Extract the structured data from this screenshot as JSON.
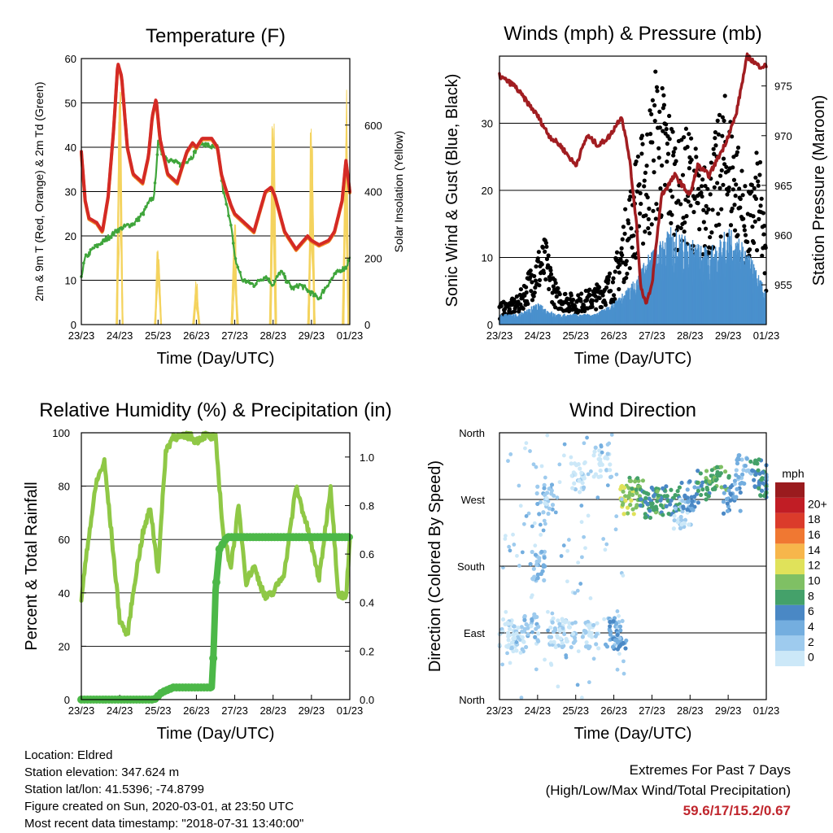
{
  "x_ticks": [
    "23/23",
    "24/23",
    "25/23",
    "26/23",
    "27/23",
    "28/23",
    "29/23",
    "01/23"
  ],
  "panels": {
    "temperature": {
      "title": "Temperature (F)",
      "xlabel": "Time (Day/UTC)",
      "ylabel_left": "2m & 9m T (Red, Orange) & 2m Td (Green)",
      "ylabel_right": "Solar Insolation (Yellow)",
      "yticks_left": [
        "0",
        "10",
        "20",
        "30",
        "40",
        "50",
        "60"
      ],
      "yticks_right": [
        "0",
        "200",
        "400",
        "600"
      ]
    },
    "winds": {
      "title": "Winds (mph) & Pressure (mb)",
      "xlabel": "Time (Day/UTC)",
      "ylabel_left": "Sonic Wind & Gust (Blue, Black)",
      "ylabel_right": "Station Pressure (Maroon)",
      "yticks_left": [
        "0",
        "10",
        "20",
        "30"
      ],
      "yticks_right": [
        "955",
        "960",
        "965",
        "970",
        "975"
      ]
    },
    "humidity": {
      "title": "Relative Humidity (%) & Precipitation (in)",
      "xlabel": "Time (Day/UTC)",
      "ylabel_left": "Percent & Total Rainfall",
      "yticks_left": [
        "0",
        "20",
        "40",
        "60",
        "80",
        "100"
      ],
      "yticks_right": [
        "0.0",
        "0.2",
        "0.4",
        "0.6",
        "0.8",
        "1.0"
      ]
    },
    "direction": {
      "title": "Wind Direction",
      "xlabel": "Time (Day/UTC)",
      "ylabel_left": "Direction (Colored By Speed)",
      "yticks_left": [
        "North",
        "East",
        "South",
        "West",
        "North"
      ],
      "legend_title": "mph",
      "legend_labels": [
        "0",
        "2",
        "4",
        "6",
        "8",
        "10",
        "12",
        "14",
        "16",
        "18",
        "20+"
      ],
      "legend_colors": [
        "#cce8f8",
        "#9ecbee",
        "#74aedf",
        "#4a88c5",
        "#44a16a",
        "#7fc064",
        "#e0e25a",
        "#f7b64b",
        "#f07832",
        "#db3b2b",
        "#c11d25",
        "#9a1b1e"
      ]
    }
  },
  "info": {
    "location": "Location: Eldred",
    "elevation": "Station elevation: 347.624 m",
    "latlon": "Station lat/lon: 41.5396; -74.8799",
    "created": "Figure created on Sun, 2020-03-01, at 23:50 UTC",
    "recent": "Most recent data timestamp: \"2018-07-31 13:40:00\""
  },
  "extremes": {
    "title": "Extremes For Past 7 Days",
    "subtitle": "(High/Low/Max Wind/Total Precipitation)",
    "values": "59.6/17/15.2/0.67"
  },
  "chart_data": [
    {
      "type": "line",
      "title": "Temperature (F)",
      "x_unit": "days since 23/23",
      "xlim": [
        0,
        7
      ],
      "ylim": [
        0,
        60
      ],
      "y2lim": [
        0,
        800
      ],
      "series": [
        {
          "name": "2m & 9m T (Red, Orange)",
          "color": "#d42a25",
          "x": [
            0,
            0.1,
            0.2,
            0.4,
            0.55,
            0.7,
            0.85,
            0.95,
            1.05,
            1.2,
            1.35,
            1.6,
            1.75,
            1.85,
            1.95,
            2.05,
            2.25,
            2.5,
            2.75,
            2.9,
            3.0,
            3.15,
            3.4,
            3.55,
            3.65,
            3.75,
            3.9,
            4.0,
            4.25,
            4.5,
            4.8,
            4.95,
            5.05,
            5.3,
            5.6,
            5.9,
            6.0,
            6.2,
            6.45,
            6.6,
            6.8,
            6.9,
            7.0
          ],
          "y": [
            39,
            28,
            24,
            23,
            21,
            29,
            45,
            59,
            56,
            40,
            34,
            32,
            38,
            47,
            51,
            42,
            34,
            32,
            39,
            41,
            40,
            42,
            42,
            40,
            34,
            31,
            27,
            25,
            23,
            21,
            30,
            31,
            29,
            21,
            17,
            20,
            19,
            18,
            19,
            21,
            28,
            37,
            30
          ]
        },
        {
          "name": "2m Td (Green)",
          "color": "#3fa53b",
          "x": [
            0,
            0.1,
            0.3,
            0.6,
            0.9,
            1.1,
            1.4,
            1.6,
            1.8,
            1.9,
            2.0,
            2.1,
            2.3,
            2.6,
            2.9,
            3.1,
            3.4,
            3.55,
            3.7,
            3.9,
            4.0,
            4.2,
            4.5,
            4.8,
            5.0,
            5.2,
            5.5,
            5.7,
            6.0,
            6.2,
            6.5,
            6.7,
            6.9,
            7.0
          ],
          "y": [
            11,
            15,
            17,
            19,
            21,
            22,
            23,
            25,
            28,
            29,
            41,
            39,
            37,
            36,
            38,
            41,
            40,
            40,
            30,
            23,
            15,
            10,
            9,
            11,
            9,
            12,
            8,
            9,
            7,
            6,
            10,
            12,
            13,
            15
          ]
        },
        {
          "name": "Solar Insolation (Yellow)",
          "axis": "right",
          "color": "#f4d35e",
          "x": [
            0.9,
            1.0,
            1.1,
            1.9,
            2.0,
            2.1,
            2.9,
            3.0,
            3.1,
            3.9,
            4.0,
            4.1,
            4.9,
            5.0,
            5.1,
            5.9,
            6.0,
            6.1,
            6.8,
            6.9,
            7.0
          ],
          "y": [
            0,
            730,
            0,
            0,
            230,
            0,
            0,
            130,
            0,
            0,
            320,
            0,
            0,
            690,
            0,
            0,
            590,
            0,
            0,
            720,
            0
          ]
        }
      ]
    },
    {
      "type": "scatter",
      "title": "Winds (mph) & Pressure (mb)",
      "x_unit": "days since 23/23",
      "xlim": [
        0,
        7
      ],
      "ylim": [
        0,
        40
      ],
      "y2lim": [
        951,
        978
      ],
      "series": [
        {
          "name": "Sonic Wind (Blue)",
          "color": "#4a90cd",
          "x": [
            0,
            0.5,
            1.0,
            1.5,
            2.0,
            2.5,
            3.0,
            3.5,
            4.0,
            4.5,
            5.0,
            5.5,
            6.0,
            6.5,
            7.0
          ],
          "y": [
            1,
            1,
            2,
            1,
            1,
            1,
            2,
            4,
            7,
            9,
            8,
            7,
            9,
            7,
            3
          ]
        },
        {
          "name": "Gust (Black)",
          "color": "#000000",
          "x": [
            0,
            0.5,
            1.0,
            1.2,
            1.5,
            2.0,
            2.5,
            3.0,
            3.3,
            3.6,
            3.9,
            4.1,
            4.4,
            4.7,
            5.0,
            5.3,
            5.6,
            5.9,
            6.2,
            6.5,
            6.8,
            7.0
          ],
          "y": [
            2,
            3,
            8,
            9,
            4,
            3,
            4,
            6,
            12,
            18,
            22,
            27,
            24,
            19,
            21,
            16,
            19,
            24,
            21,
            13,
            19,
            8
          ]
        },
        {
          "name": "Station Pressure (Maroon)",
          "axis": "right",
          "color": "#a11d21",
          "x": [
            0,
            0.4,
            0.6,
            1.0,
            1.3,
            1.6,
            2.0,
            2.3,
            2.6,
            2.9,
            3.2,
            3.4,
            3.6,
            3.7,
            3.85,
            4.0,
            4.25,
            4.6,
            5.0,
            5.2,
            5.5,
            5.9,
            6.2,
            6.5,
            6.8,
            7.0
          ],
          "y": [
            976,
            975,
            974,
            972,
            970,
            969,
            967,
            970,
            969,
            970,
            972,
            968,
            961,
            955,
            953,
            955,
            964,
            966,
            964,
            967,
            966,
            969,
            972,
            978,
            977,
            977
          ]
        }
      ]
    },
    {
      "type": "line",
      "title": "Relative Humidity (%) & Precipitation (in)",
      "x_unit": "days since 23/23",
      "xlim": [
        0,
        7
      ],
      "ylim": [
        0,
        100
      ],
      "y2lim": [
        0,
        1.1
      ],
      "series": [
        {
          "name": "Relative Humidity",
          "color": "#8fc846",
          "x": [
            0,
            0.2,
            0.4,
            0.6,
            0.8,
            1.0,
            1.2,
            1.4,
            1.6,
            1.8,
            2.0,
            2.2,
            2.4,
            2.6,
            2.8,
            3.0,
            3.2,
            3.5,
            3.7,
            3.9,
            4.1,
            4.3,
            4.5,
            4.8,
            5.0,
            5.3,
            5.6,
            5.9,
            6.2,
            6.5,
            6.7,
            6.9,
            7.0
          ],
          "y": [
            38,
            62,
            82,
            89,
            60,
            30,
            24,
            45,
            62,
            72,
            48,
            93,
            99,
            98,
            99,
            97,
            99,
            98,
            62,
            50,
            72,
            44,
            50,
            38,
            40,
            48,
            80,
            64,
            45,
            80,
            40,
            38,
            60
          ]
        },
        {
          "name": "Total Precipitation",
          "axis": "right",
          "color": "#4cb848",
          "x": [
            0,
            1.9,
            2.1,
            2.4,
            3.4,
            3.45,
            3.5,
            3.6,
            3.8,
            7.0
          ],
          "y": [
            0,
            0,
            0.03,
            0.05,
            0.05,
            0.2,
            0.45,
            0.62,
            0.67,
            0.67
          ]
        }
      ]
    },
    {
      "type": "scatter",
      "title": "Wind Direction",
      "x_unit": "days since 23/23",
      "xlim": [
        0,
        7
      ],
      "ylim": [
        0,
        360
      ],
      "series": [
        {
          "name": "Direction",
          "color_by": "speed",
          "x": [
            0.2,
            0.5,
            0.8,
            1.0,
            1.2,
            1.5,
            1.8,
            2.1,
            2.4,
            2.7,
            3.0,
            3.1,
            3.4,
            3.6,
            3.9,
            4.2,
            4.5,
            4.8,
            5.0,
            5.4,
            5.8,
            6.1,
            6.4,
            6.8,
            7.0
          ],
          "y": [
            90,
            85,
            95,
            180,
            270,
            90,
            88,
            300,
            85,
            320,
            90,
            88,
            270,
            280,
            265,
            270,
            268,
            250,
            275,
            290,
            300,
            270,
            310,
            305,
            290
          ],
          "speed": [
            1,
            2,
            3,
            4,
            3,
            2,
            2,
            1,
            2,
            1,
            4,
            6,
            12,
            10,
            8,
            9,
            8,
            2,
            6,
            9,
            10,
            6,
            4,
            8,
            7
          ]
        }
      ]
    }
  ]
}
